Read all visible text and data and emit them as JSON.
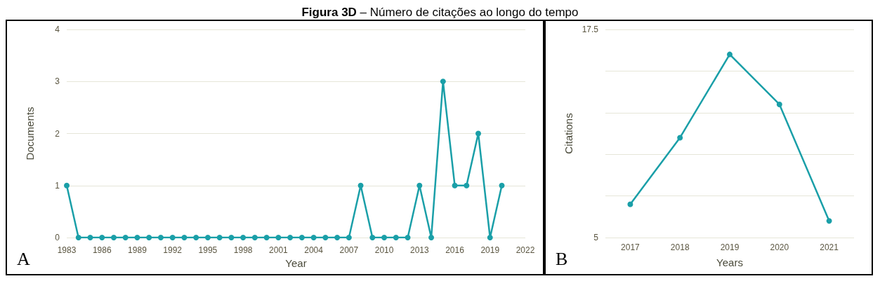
{
  "chart_data": [
    {
      "type": "line",
      "title": "Figura 3D – Número de citações ao longo do tempo",
      "xlabel": "Year",
      "ylabel": "Documents",
      "x": [
        1983,
        1984,
        1985,
        1986,
        1987,
        1988,
        1989,
        1990,
        1991,
        1992,
        1993,
        1994,
        1995,
        1996,
        1997,
        1998,
        1999,
        2000,
        2001,
        2002,
        2003,
        2004,
        2005,
        2006,
        2007,
        2008,
        2009,
        2010,
        2011,
        2012,
        2013,
        2014,
        2015,
        2016,
        2017,
        2018,
        2019,
        2020
      ],
      "series": [
        {
          "color": "#1a9fa8",
          "values": [
            1,
            0,
            0,
            0,
            0,
            0,
            0,
            0,
            0,
            0,
            0,
            0,
            0,
            0,
            0,
            0,
            0,
            0,
            0,
            0,
            0,
            0,
            0,
            0,
            0,
            1,
            0,
            0,
            0,
            0,
            1,
            0,
            3,
            1,
            1,
            2,
            0,
            1
          ]
        }
      ],
      "xlim": [
        1983,
        2022
      ],
      "xticks": [
        1983,
        1986,
        1989,
        1992,
        1995,
        1998,
        2001,
        2004,
        2007,
        2010,
        2013,
        2016,
        2019,
        2022
      ],
      "ylim": [
        0,
        4
      ],
      "yticks": [
        0,
        1,
        2,
        3,
        4
      ],
      "grid": "y",
      "marker": "circle",
      "annotations": [
        "A"
      ]
    },
    {
      "type": "line",
      "xlabel": "Years",
      "ylabel": "Citations",
      "categories": [
        "2017",
        "2018",
        "2019",
        "2020",
        "2021"
      ],
      "series": [
        {
          "color": "#1a9fa8",
          "values": [
            7,
            11,
            16,
            13,
            6
          ]
        }
      ],
      "ylim": [
        5,
        17.5
      ],
      "yticks": [
        5,
        {
          "value": 7.5,
          "label": null
        },
        {
          "value": 10,
          "label": null
        },
        {
          "value": 12.5,
          "label": null
        },
        {
          "value": 15,
          "label": null
        },
        17.5
      ],
      "grid": "y",
      "marker": "circle",
      "annotations": [
        "B"
      ]
    }
  ]
}
